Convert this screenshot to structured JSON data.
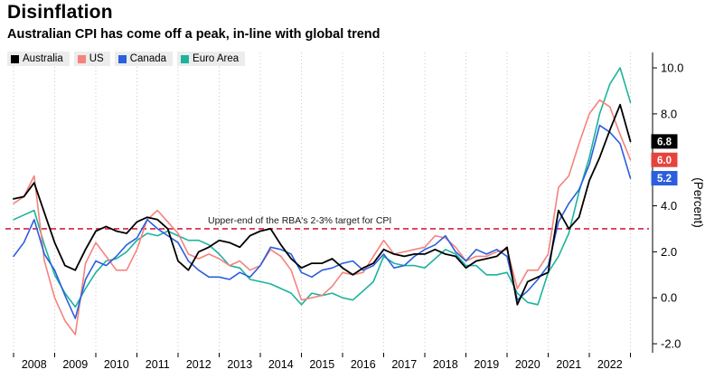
{
  "header": {
    "title": "Disinflation",
    "subtitle": "Australian CPI has come off a peak, in-line with global trend"
  },
  "chart_data": {
    "type": "line",
    "title": "Disinflation",
    "subtitle": "Australian CPI has come off a peak, in-line with global trend",
    "x_start_year": 2008,
    "x_step_years": 0.25,
    "x_tick_labels": [
      "2008",
      "2009",
      "2010",
      "2011",
      "2012",
      "2013",
      "2014",
      "2015",
      "2016",
      "2017",
      "2018",
      "2019",
      "2020",
      "2021",
      "2022"
    ],
    "y_ticks": [
      -2,
      0,
      2,
      4,
      6,
      8,
      10
    ],
    "y_tick_labels": [
      "-2.0",
      "0.0",
      "2.0",
      "4.0",
      "6.0",
      "8.0",
      "10.0"
    ],
    "ylim": [
      -2.6,
      10.8
    ],
    "y_axis_title": "(Percent)",
    "grid": "vertical-dotted",
    "legend_position": "top-left",
    "target_line": {
      "value": 3.0,
      "label": "Upper-end of the RBA's 2-3% target for CPI",
      "color": "#d62246"
    },
    "series": [
      {
        "name": "Australia",
        "color": "#000000",
        "end_label": "6.8",
        "end_label_bg": "#000000",
        "values": [
          4.3,
          4.4,
          5.0,
          3.7,
          2.4,
          1.4,
          1.2,
          2.1,
          2.9,
          3.1,
          2.9,
          2.8,
          3.3,
          3.5,
          3.4,
          3.0,
          1.6,
          1.2,
          2.0,
          2.2,
          2.5,
          2.4,
          2.2,
          2.7,
          2.9,
          3.0,
          2.3,
          1.7,
          1.3,
          1.5,
          1.5,
          1.7,
          1.3,
          1.0,
          1.3,
          1.5,
          2.1,
          1.9,
          1.8,
          1.9,
          1.9,
          2.1,
          1.9,
          1.8,
          1.3,
          1.6,
          1.7,
          1.8,
          2.2,
          -0.3,
          0.7,
          0.9,
          1.1,
          3.8,
          3.0,
          3.5,
          5.1,
          6.1,
          7.3,
          8.4,
          6.8
        ]
      },
      {
        "name": "US",
        "color": "#f4837d",
        "end_label": "6.0",
        "end_label_bg": "#e5433d",
        "values": [
          4.1,
          4.4,
          5.3,
          1.6,
          0.0,
          -1.0,
          -1.6,
          1.5,
          2.4,
          1.8,
          1.2,
          1.2,
          2.1,
          3.4,
          3.8,
          3.3,
          2.8,
          1.9,
          1.7,
          1.9,
          1.7,
          1.4,
          1.6,
          1.2,
          1.4,
          2.1,
          1.8,
          1.2,
          -0.1,
          0.0,
          0.1,
          0.5,
          1.1,
          1.0,
          1.1,
          1.8,
          2.5,
          1.9,
          2.0,
          2.1,
          2.2,
          2.7,
          2.6,
          2.2,
          1.6,
          1.8,
          1.8,
          2.0,
          2.1,
          0.4,
          1.2,
          1.2,
          1.9,
          4.8,
          5.3,
          6.7,
          8.0,
          8.6,
          8.3,
          7.1,
          6.0
        ]
      },
      {
        "name": "Canada",
        "color": "#2b5fdd",
        "end_label": "5.2",
        "end_label_bg": "#2b5fdd",
        "values": [
          1.8,
          2.4,
          3.4,
          1.9,
          1.2,
          0.1,
          -0.9,
          0.8,
          1.6,
          1.4,
          1.8,
          2.3,
          2.6,
          3.4,
          3.0,
          2.7,
          2.4,
          1.6,
          1.2,
          0.9,
          0.9,
          0.8,
          1.1,
          0.9,
          1.4,
          2.2,
          2.1,
          1.9,
          1.1,
          0.9,
          1.2,
          1.3,
          1.5,
          1.6,
          1.2,
          1.4,
          1.9,
          1.3,
          1.4,
          1.8,
          2.1,
          2.3,
          2.7,
          2.0,
          1.6,
          2.1,
          1.9,
          2.1,
          1.8,
          -0.1,
          0.3,
          0.8,
          1.4,
          3.3,
          4.1,
          4.7,
          5.8,
          7.5,
          7.2,
          6.7,
          5.2
        ]
      },
      {
        "name": "Euro Area",
        "color": "#1cb39b",
        "values": [
          3.4,
          3.6,
          3.8,
          2.3,
          1.0,
          0.2,
          -0.4,
          0.4,
          1.1,
          1.6,
          1.7,
          2.0,
          2.5,
          2.8,
          2.7,
          2.9,
          2.7,
          2.5,
          2.5,
          2.3,
          1.9,
          1.4,
          1.3,
          0.8,
          0.7,
          0.6,
          0.4,
          0.2,
          -0.3,
          0.2,
          0.1,
          0.2,
          0.0,
          -0.1,
          0.3,
          0.7,
          1.8,
          1.5,
          1.4,
          1.4,
          1.3,
          1.7,
          2.1,
          1.9,
          1.4,
          1.4,
          1.0,
          1.0,
          1.1,
          0.2,
          -0.2,
          -0.3,
          1.1,
          1.8,
          2.8,
          4.6,
          6.1,
          8.0,
          9.3,
          10.0,
          8.5
        ]
      }
    ]
  }
}
